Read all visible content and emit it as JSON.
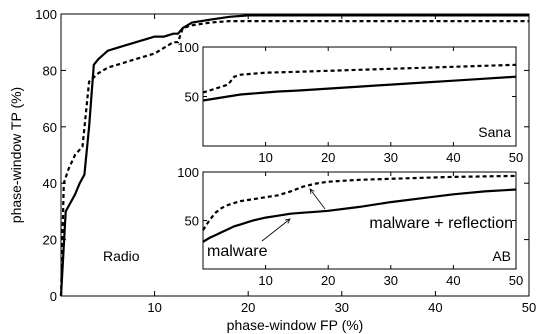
{
  "chart_data": [
    {
      "panel": "main",
      "type": "line",
      "xlabel": "phase-window FP (%)",
      "ylabel": "phase-window TP (%)",
      "xlim": [
        0,
        50
      ],
      "ylim": [
        0,
        100
      ],
      "xticks": [
        10,
        20,
        30,
        40,
        50
      ],
      "yticks": [
        0,
        20,
        40,
        60,
        80,
        100
      ],
      "xtick_labels": [
        "10",
        "20",
        "30",
        "40",
        "50"
      ],
      "ytick_labels": [
        "0",
        "20",
        "40",
        "60",
        "80",
        "100"
      ],
      "label": "Radio",
      "series": [
        {
          "style": "solid",
          "x": [
            0,
            0.5,
            1,
            1.5,
            2,
            2.5,
            3,
            3.5,
            4,
            5,
            6,
            7,
            8,
            9,
            10,
            11,
            12,
            12.5,
            13,
            14,
            16,
            18,
            20,
            25,
            30,
            40,
            50
          ],
          "y": [
            0,
            30,
            33,
            36,
            40,
            43,
            60,
            82,
            84,
            87,
            88,
            89,
            90,
            91,
            92,
            92,
            93,
            93,
            95,
            97,
            98,
            99,
            99.5,
            99.5,
            99.5,
            99.5,
            99.5
          ]
        },
        {
          "style": "dashed",
          "x": [
            0,
            0.3,
            0.8,
            1.5,
            2.3,
            3,
            4,
            5,
            6,
            7,
            8,
            9,
            10,
            11,
            12,
            12.5,
            13,
            14,
            16,
            18,
            20,
            25,
            30,
            40,
            50
          ],
          "y": [
            0,
            40,
            45,
            50,
            53,
            76,
            79,
            81,
            82,
            83,
            84,
            85,
            86,
            88,
            90,
            90,
            95,
            96,
            97,
            97.5,
            97.5,
            97.5,
            97.5,
            97.5,
            97.5
          ]
        }
      ]
    },
    {
      "panel": "inset-top",
      "type": "line",
      "xlim": [
        0,
        50
      ],
      "ylim": [
        0,
        100
      ],
      "xticks": [
        10,
        20,
        30,
        40,
        50
      ],
      "yticks": [
        50,
        100
      ],
      "xtick_labels": [
        "10",
        "20",
        "30",
        "40",
        "50"
      ],
      "ytick_labels": [
        "50",
        "100"
      ],
      "label": "Sana",
      "series": [
        {
          "style": "solid",
          "x": [
            0,
            1,
            2,
            4,
            6,
            8,
            10,
            12,
            15,
            20,
            25,
            30,
            35,
            40,
            45,
            50
          ],
          "y": [
            46,
            47,
            48,
            50,
            52,
            53,
            54,
            55,
            56,
            58,
            60,
            62,
            64,
            66,
            68,
            70
          ]
        },
        {
          "style": "dashed",
          "x": [
            0,
            1,
            2,
            3,
            4,
            5,
            6,
            8,
            10,
            15,
            20,
            25,
            30,
            35,
            40,
            45,
            50
          ],
          "y": [
            54,
            56,
            58,
            60,
            62,
            70,
            72,
            73,
            74,
            75,
            76,
            77,
            78,
            79,
            80,
            81,
            82
          ]
        }
      ]
    },
    {
      "panel": "inset-bottom",
      "type": "line",
      "xlim": [
        0,
        50
      ],
      "ylim": [
        0,
        100
      ],
      "xticks": [
        10,
        20,
        30,
        40,
        50
      ],
      "yticks": [
        50,
        100
      ],
      "xtick_labels": [
        "10",
        "20",
        "30",
        "40",
        "50"
      ],
      "ytick_labels": [
        "50",
        "100"
      ],
      "label": "AB",
      "annotations": [
        "malware",
        "malware + reflection"
      ],
      "series": [
        {
          "style": "solid",
          "x": [
            0,
            1,
            2,
            3,
            4,
            5,
            6,
            7,
            8,
            10,
            12,
            14,
            16,
            18,
            20,
            25,
            30,
            35,
            40,
            45,
            50
          ],
          "y": [
            28,
            32,
            35,
            38,
            41,
            44,
            46,
            48,
            50,
            53,
            55,
            57,
            58,
            59,
            60,
            64,
            69,
            73,
            77,
            80,
            82
          ]
        },
        {
          "style": "dashed",
          "x": [
            0,
            1,
            2,
            3,
            4,
            5,
            6,
            8,
            10,
            12,
            14,
            16,
            18,
            20,
            25,
            30,
            35,
            40,
            45,
            50
          ],
          "y": [
            40,
            50,
            58,
            63,
            66,
            68,
            70,
            72,
            74,
            76,
            80,
            85,
            88,
            90,
            92,
            93,
            94,
            95,
            95.5,
            96
          ]
        }
      ]
    }
  ]
}
